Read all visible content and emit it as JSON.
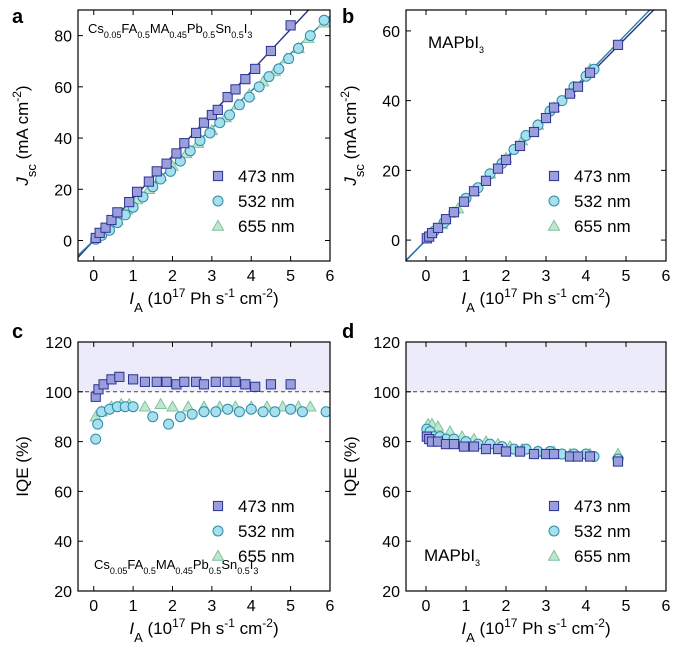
{
  "colors": {
    "s473_fill": "#9a9fdb",
    "s473_stroke": "#2c3391",
    "s532_fill": "#a6e0ee",
    "s532_stroke": "#2d8aa8",
    "s655_fill": "#bfe6cf",
    "s655_stroke": "#7fc4a0",
    "fit473": "#27307f",
    "fit532": "#2a7e9e",
    "shade": "#ebebf9"
  },
  "legend_labels": [
    "473 nm",
    "532 nm",
    "655 nm"
  ],
  "chart_data": [
    {
      "panel": "a",
      "type": "scatter",
      "annotation": "Cs0.05FA0.5MA0.45Pb0.5Sn0.5I3",
      "xlabel": "I_A (10^17 Ph s^-1 cm^-2)",
      "ylabel": "J_sc (mA cm^-2)",
      "xlim": [
        -0.4,
        6.0
      ],
      "ylim": [
        -8,
        90
      ],
      "xticks": [
        0,
        1,
        2,
        3,
        4,
        5,
        6
      ],
      "yticks": [
        0,
        20,
        40,
        60,
        80
      ],
      "legend_position": "bottom-right",
      "fit_lines": [
        {
          "series": "473 nm",
          "slope": 16.5,
          "intercept": 0
        },
        {
          "series": "532 nm",
          "slope": 14.6,
          "intercept": 0
        }
      ],
      "series": [
        {
          "name": "473 nm",
          "marker": "square",
          "x": [
            0.05,
            0.15,
            0.3,
            0.45,
            0.6,
            0.9,
            1.1,
            1.4,
            1.6,
            1.85,
            2.1,
            2.3,
            2.6,
            2.8,
            3.0,
            3.15,
            3.4,
            3.6,
            3.85,
            4.1,
            4.5,
            5.0
          ],
          "y": [
            1,
            3,
            5,
            8,
            11,
            15,
            19,
            23,
            27,
            30,
            34,
            38,
            42,
            46,
            49,
            51,
            56,
            59,
            63,
            67,
            74,
            84
          ]
        },
        {
          "name": "532 nm",
          "marker": "circle",
          "x": [
            0.05,
            0.2,
            0.4,
            0.6,
            0.8,
            1.0,
            1.25,
            1.5,
            1.7,
            1.95,
            2.2,
            2.45,
            2.7,
            2.95,
            3.2,
            3.45,
            3.7,
            3.95,
            4.2,
            4.45,
            4.7,
            4.95,
            5.2,
            5.5,
            5.85
          ],
          "y": [
            0.5,
            2,
            4,
            7,
            10,
            13,
            17,
            21,
            24,
            27,
            31,
            35,
            39,
            42,
            46,
            49,
            53,
            56,
            60,
            64,
            67,
            71,
            75,
            80,
            86
          ]
        },
        {
          "name": "655 nm",
          "marker": "triangle",
          "x": [
            0.05,
            0.3,
            0.6,
            0.85,
            1.1,
            1.4,
            1.7,
            2.0,
            2.35,
            2.65,
            3.0,
            3.35,
            3.65,
            3.95,
            4.3,
            4.6,
            4.9,
            5.2,
            5.45,
            5.85
          ],
          "y": [
            1,
            4,
            8,
            12,
            16,
            20,
            25,
            29,
            34,
            38,
            43,
            48,
            53,
            57,
            62,
            66,
            71,
            75,
            79,
            85
          ]
        }
      ]
    },
    {
      "panel": "b",
      "type": "scatter",
      "annotation": "MAPbI3",
      "xlabel": "I_A (10^17 Ph s^-1 cm^-2)",
      "ylabel": "J_sc (mA cm^-2)",
      "xlim": [
        -0.5,
        6.0
      ],
      "ylim": [
        -6,
        66
      ],
      "xticks": [
        0,
        1,
        2,
        3,
        4,
        5,
        6
      ],
      "yticks": [
        0,
        20,
        40,
        60
      ],
      "legend_position": "bottom-right",
      "fit_lines": [
        {
          "series": "473 nm",
          "slope": 11.6,
          "intercept": 0
        },
        {
          "series": "532 nm",
          "slope": 11.8,
          "intercept": 0
        }
      ],
      "series": [
        {
          "name": "473 nm",
          "marker": "square",
          "x": [
            0.02,
            0.08,
            0.15,
            0.3,
            0.5,
            0.7,
            0.95,
            1.2,
            1.5,
            1.8,
            2.0,
            2.35,
            2.7,
            3.0,
            3.2,
            3.6,
            3.8,
            4.1,
            4.8
          ],
          "y": [
            0.5,
            1,
            2,
            3.5,
            6,
            8,
            11,
            14,
            17,
            20.5,
            23,
            27,
            31,
            35,
            38,
            42,
            44,
            48,
            56
          ]
        },
        {
          "name": "532 nm",
          "marker": "circle",
          "x": [
            0.05,
            0.2,
            0.45,
            0.7,
            1.0,
            1.3,
            1.6,
            1.9,
            2.2,
            2.5,
            2.8,
            3.1,
            3.4,
            3.7,
            4.0,
            4.2
          ],
          "y": [
            1,
            2.5,
            5,
            8,
            12,
            15,
            19,
            22,
            26,
            30,
            33,
            37,
            40,
            44,
            47,
            49
          ]
        },
        {
          "name": "655 nm",
          "marker": "triangle",
          "x": [
            0.05,
            0.4,
            0.8,
            1.2,
            1.6,
            2.0,
            2.4,
            2.8,
            3.2,
            3.6,
            4.1
          ],
          "y": [
            1,
            4.5,
            9,
            14,
            19,
            23.5,
            28.5,
            33,
            38,
            42.5,
            49
          ]
        }
      ]
    },
    {
      "panel": "c",
      "type": "scatter",
      "annotation": "Cs0.05FA0.5MA0.45Pb0.5Sn0.5I3",
      "xlabel": "I_A (10^17 Ph s^-1 cm^-2)",
      "ylabel": "IQE (%)",
      "xlim": [
        -0.4,
        6.0
      ],
      "ylim": [
        20,
        120
      ],
      "xticks": [
        0,
        1,
        2,
        3,
        4,
        5,
        6
      ],
      "yticks": [
        20,
        40,
        60,
        80,
        100,
        120
      ],
      "reference_line": 100,
      "shaded_region": [
        100,
        120
      ],
      "legend_position": "bottom-right",
      "series": [
        {
          "name": "473 nm",
          "marker": "square",
          "x": [
            0.05,
            0.12,
            0.25,
            0.45,
            0.65,
            1.0,
            1.3,
            1.6,
            1.85,
            2.1,
            2.3,
            2.6,
            2.8,
            3.1,
            3.4,
            3.6,
            3.85,
            4.1,
            4.5,
            5.0
          ],
          "y": [
            98,
            101,
            103,
            105,
            106,
            105,
            104,
            104,
            104,
            103,
            104,
            104,
            103,
            104,
            104,
            104,
            103,
            102,
            103,
            103
          ]
        },
        {
          "name": "532 nm",
          "marker": "circle",
          "x": [
            0.05,
            0.1,
            0.2,
            0.4,
            0.6,
            0.8,
            1.0,
            1.5,
            1.9,
            2.2,
            2.5,
            2.8,
            3.1,
            3.4,
            3.7,
            4.0,
            4.3,
            4.6,
            5.0,
            5.3,
            5.9
          ],
          "y": [
            81,
            87,
            92,
            93,
            94,
            94,
            94,
            90,
            87,
            90,
            91,
            92,
            92,
            93,
            92,
            93,
            92,
            92,
            93,
            92,
            92
          ]
        },
        {
          "name": "655 nm",
          "marker": "triangle",
          "x": [
            0.05,
            0.2,
            0.45,
            0.7,
            0.9,
            1.3,
            1.7,
            2.0,
            2.4,
            2.8,
            3.2,
            3.6,
            4.0,
            4.4,
            4.8,
            5.2,
            5.5
          ],
          "y": [
            90,
            92,
            94,
            95,
            95,
            94,
            95,
            94,
            94,
            94,
            94,
            94,
            94,
            94,
            94,
            94,
            94
          ]
        }
      ]
    },
    {
      "panel": "d",
      "type": "scatter",
      "annotation": "MAPbI3",
      "xlabel": "I_A (10^17 Ph s^-1 cm^-2)",
      "ylabel": "IQE (%)",
      "xlim": [
        -0.5,
        6.0
      ],
      "ylim": [
        20,
        120
      ],
      "xticks": [
        0,
        1,
        2,
        3,
        4,
        5,
        6
      ],
      "yticks": [
        20,
        40,
        60,
        80,
        100,
        120
      ],
      "reference_line": 100,
      "shaded_region": [
        100,
        120
      ],
      "legend_position": "bottom-right",
      "series": [
        {
          "name": "473 nm",
          "marker": "square",
          "x": [
            0.02,
            0.08,
            0.15,
            0.3,
            0.5,
            0.7,
            0.95,
            1.2,
            1.5,
            1.8,
            2.0,
            2.35,
            2.7,
            3.0,
            3.2,
            3.6,
            3.8,
            4.1,
            4.8
          ],
          "y": [
            82,
            81,
            80,
            80,
            79,
            79,
            78,
            78,
            77,
            77,
            76,
            76,
            75,
            75,
            75,
            74,
            74,
            74,
            72
          ]
        },
        {
          "name": "532 nm",
          "marker": "circle",
          "x": [
            0.02,
            0.1,
            0.2,
            0.35,
            0.5,
            0.7,
            1.0,
            1.3,
            1.6,
            1.9,
            2.2,
            2.5,
            2.8,
            3.1,
            3.4,
            3.7,
            4.0,
            4.2,
            4.8
          ],
          "y": [
            85,
            84,
            82,
            82,
            81,
            81,
            80,
            79,
            79,
            78,
            77,
            77,
            76,
            76,
            75,
            75,
            75,
            74,
            73
          ]
        },
        {
          "name": "655 nm",
          "marker": "triangle",
          "x": [
            0.05,
            0.15,
            0.3,
            0.6,
            0.9,
            1.2,
            1.5,
            1.8,
            2.1,
            2.4,
            2.8,
            3.2,
            3.6,
            4.1,
            4.8
          ],
          "y": [
            87,
            87,
            86,
            84,
            82,
            81,
            80,
            79,
            78,
            77,
            76,
            76,
            75,
            75,
            75
          ]
        }
      ]
    }
  ],
  "panel_labels": [
    "a",
    "b",
    "c",
    "d"
  ]
}
